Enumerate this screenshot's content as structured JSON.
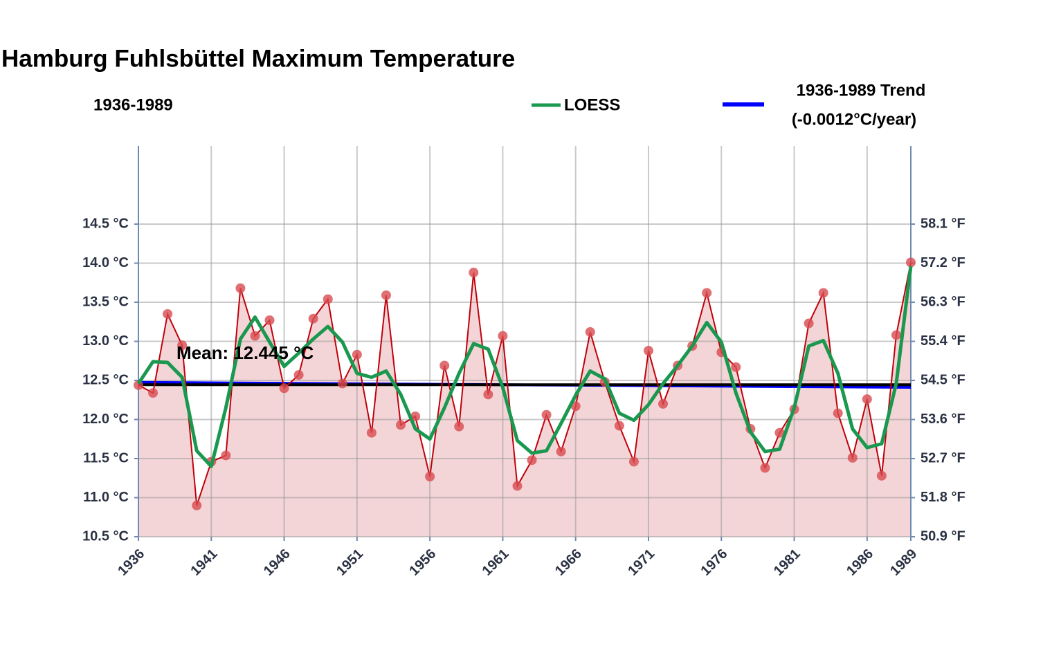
{
  "chart_data": {
    "type": "line",
    "title": "Hamburg Fuhlsbüttel Maximum Temperature",
    "subtitle": "1936-1989",
    "x": [
      1936,
      1937,
      1938,
      1939,
      1940,
      1941,
      1942,
      1943,
      1944,
      1945,
      1946,
      1947,
      1948,
      1949,
      1950,
      1951,
      1952,
      1953,
      1954,
      1955,
      1956,
      1957,
      1958,
      1959,
      1960,
      1961,
      1962,
      1963,
      1964,
      1965,
      1966,
      1967,
      1968,
      1969,
      1970,
      1971,
      1972,
      1973,
      1974,
      1975,
      1976,
      1977,
      1978,
      1979,
      1980,
      1981,
      1982,
      1983,
      1984,
      1985,
      1986,
      1987,
      1988,
      1989
    ],
    "series": [
      {
        "color": "#c0000a",
        "fill": "#f4d5d7",
        "marker_color": "#d84b50",
        "values": [
          12.44,
          12.34,
          13.35,
          12.95,
          10.9,
          11.46,
          11.54,
          13.68,
          13.07,
          13.27,
          12.4,
          12.57,
          13.29,
          13.54,
          12.46,
          12.83,
          11.83,
          13.59,
          11.93,
          12.04,
          11.27,
          12.69,
          11.91,
          13.88,
          12.32,
          13.07,
          11.15,
          11.48,
          12.06,
          11.59,
          12.17,
          13.12,
          12.48,
          11.92,
          11.46,
          12.88,
          12.2,
          12.69,
          12.94,
          13.62,
          12.86,
          12.67,
          11.88,
          11.38,
          11.83,
          12.13,
          13.23,
          13.62,
          12.08,
          11.51,
          12.26,
          11.28,
          13.08,
          14.01
        ]
      },
      {
        "name": "LOESS",
        "color": "#1a9850",
        "values": [
          12.46,
          12.74,
          12.73,
          12.54,
          11.6,
          11.4,
          12.15,
          13.03,
          13.31,
          12.99,
          12.68,
          12.85,
          13.03,
          13.19,
          12.99,
          12.59,
          12.54,
          12.62,
          12.32,
          11.88,
          11.75,
          12.15,
          12.59,
          12.97,
          12.9,
          12.41,
          11.73,
          11.57,
          11.6,
          11.95,
          12.31,
          12.62,
          12.52,
          12.08,
          11.99,
          12.19,
          12.46,
          12.69,
          12.94,
          13.24,
          12.99,
          12.34,
          11.84,
          11.59,
          11.62,
          12.15,
          12.94,
          13.01,
          12.59,
          11.88,
          11.64,
          11.69,
          12.46,
          13.96
        ]
      },
      {
        "name": "1936-1989 Trend",
        "rate_label": "(-0.0012°C/year)",
        "color": "#0000ff",
        "x": [
          1936,
          1989
        ],
        "values": [
          12.475,
          12.411
        ]
      }
    ],
    "mean": 12.445,
    "mean_color": "#000000",
    "mean_label": "Mean:  12.445 °C",
    "xlim": [
      1936,
      1989
    ],
    "xticks": [
      1936,
      1941,
      1946,
      1951,
      1956,
      1961,
      1966,
      1971,
      1976,
      1981,
      1986,
      1989
    ],
    "ylim": [
      10.5,
      15.5
    ],
    "yticks": [
      {
        "value": 10.5,
        "label": "10.5 °C"
      },
      {
        "value": 11.0,
        "label": "11.0 °C"
      },
      {
        "value": 11.5,
        "label": "11.5 °C"
      },
      {
        "value": 12.0,
        "label": "12.0 °C"
      },
      {
        "value": 12.5,
        "label": "12.5 °C"
      },
      {
        "value": 13.0,
        "label": "13.0 °C"
      },
      {
        "value": 13.5,
        "label": "13.5 °C"
      },
      {
        "value": 14.0,
        "label": "14.0 °C"
      },
      {
        "value": 14.5,
        "label": "14.5 °C"
      }
    ],
    "y2lim": [
      50.9,
      59.9
    ],
    "y2ticks": [
      {
        "value": 50.9,
        "label": "50.9 °F"
      },
      {
        "value": 51.8,
        "label": "51.8 °F"
      },
      {
        "value": 52.7,
        "label": "52.7 °F"
      },
      {
        "value": 53.6,
        "label": "53.6 °F"
      },
      {
        "value": 54.5,
        "label": "54.5 °F"
      },
      {
        "value": 55.4,
        "label": "55.4 °F"
      },
      {
        "value": 56.3,
        "label": "56.3 °F"
      },
      {
        "value": 57.2,
        "label": "57.2 °F"
      },
      {
        "value": 58.1,
        "label": "58.1 °F"
      }
    ],
    "grid": true
  }
}
